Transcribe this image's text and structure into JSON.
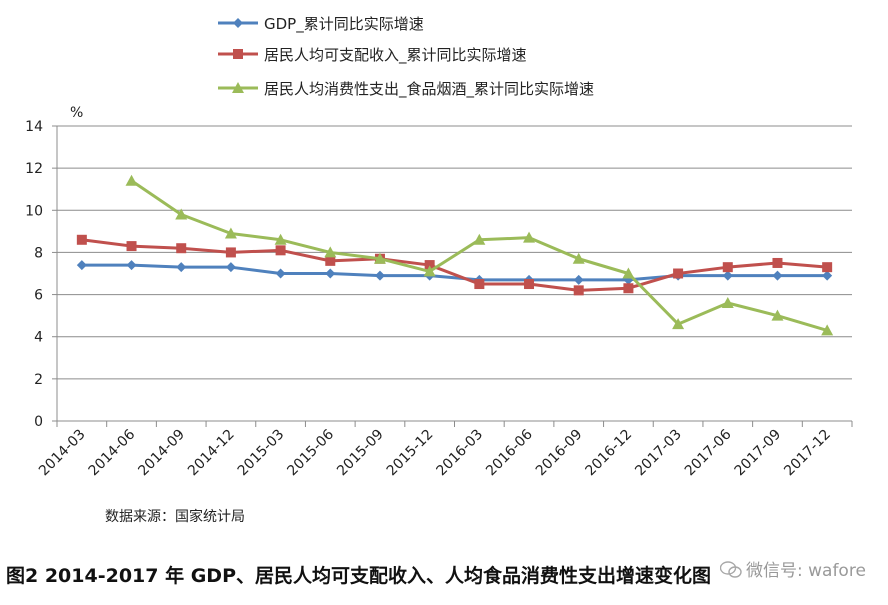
{
  "chart_data": {
    "type": "line",
    "categories": [
      "2014-03",
      "2014-06",
      "2014-09",
      "2014-12",
      "2015-03",
      "2015-06",
      "2015-09",
      "2015-12",
      "2016-03",
      "2016-06",
      "2016-09",
      "2016-12",
      "2017-03",
      "2017-06",
      "2017-09",
      "2017-12"
    ],
    "series": [
      {
        "name": "GDP_累计同比实际增速",
        "color": "#4F81BD",
        "marker": "diamond",
        "values": [
          7.4,
          7.4,
          7.3,
          7.3,
          7.0,
          7.0,
          6.9,
          6.9,
          6.7,
          6.7,
          6.7,
          6.7,
          6.9,
          6.9,
          6.9,
          6.9
        ]
      },
      {
        "name": "居民人均可支配收入_累计同比实际增速",
        "color": "#C0504D",
        "marker": "square",
        "values": [
          8.6,
          8.3,
          8.2,
          8.0,
          8.1,
          7.6,
          7.7,
          7.4,
          6.5,
          6.5,
          6.2,
          6.3,
          7.0,
          7.3,
          7.5,
          7.3
        ]
      },
      {
        "name": "居民人均消费性支出_食品烟酒_累计同比实际增速",
        "color": "#9BBB59",
        "marker": "triangle",
        "values": [
          null,
          11.4,
          9.8,
          8.9,
          8.6,
          8.0,
          7.7,
          7.1,
          8.6,
          8.7,
          7.7,
          7.0,
          4.6,
          5.6,
          5.0,
          4.3
        ]
      }
    ],
    "ylabel": "%",
    "ylim": [
      0,
      14
    ],
    "yticks": [
      0,
      2,
      4,
      6,
      8,
      10,
      12,
      14
    ],
    "grid": true,
    "legend_position": "top-left"
  },
  "footer": {
    "source": "数据来源：国家统计局",
    "caption": "图2 2014-2017 年 GDP、居民人均可支配收入、人均食品消费性支出增速变化图",
    "watermark": "微信号: wafore"
  }
}
